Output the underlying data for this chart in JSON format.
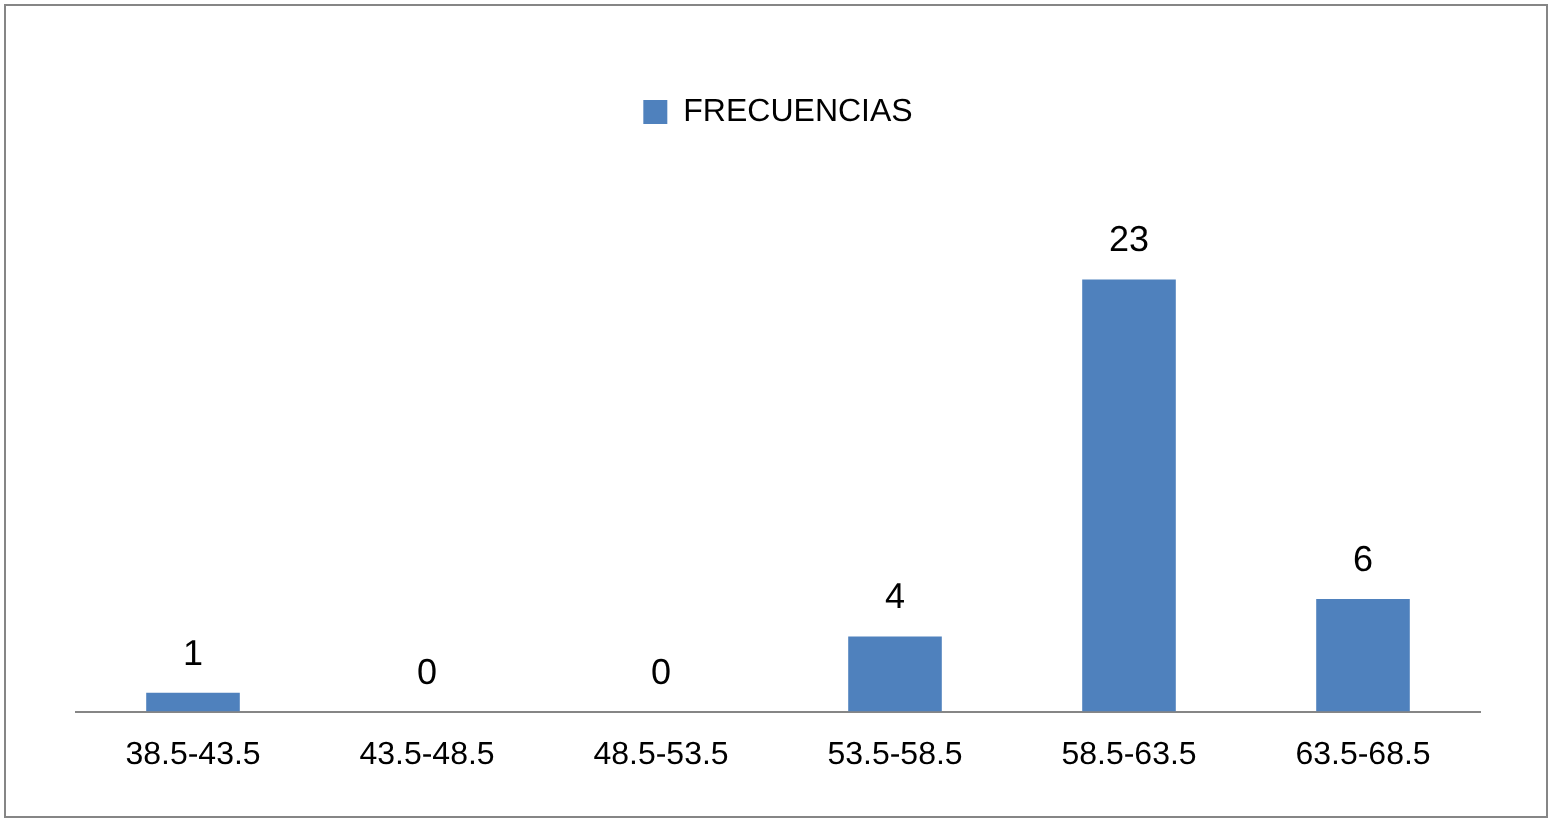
{
  "chart_data": {
    "type": "bar",
    "categories": [
      "38.5-43.5",
      "43.5-48.5",
      "48.5-53.5",
      "53.5-58.5",
      "58.5-63.5",
      "63.5-68.5"
    ],
    "series": [
      {
        "name": "FRECUENCIAS",
        "color": "#4f81bd",
        "values": [
          1,
          0,
          0,
          4,
          23,
          6
        ]
      }
    ],
    "data_labels": true,
    "legend": "top",
    "grid": false
  }
}
